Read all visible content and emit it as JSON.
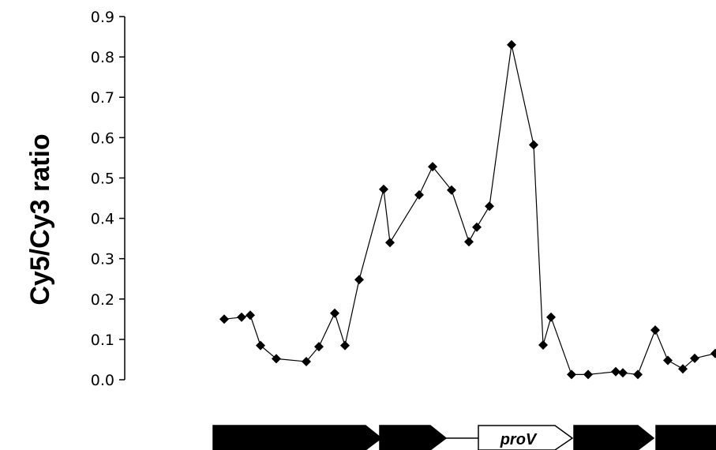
{
  "chart_data": {
    "type": "line",
    "title": "",
    "xlabel": "",
    "ylabel": "Cy5/Cy3 ratio",
    "ylim": [
      0,
      0.9
    ],
    "yticks": [
      "0.0",
      "0.1",
      "0.2",
      "0.3",
      "0.4",
      "0.5",
      "0.6",
      "0.7",
      "0.8",
      "0.9"
    ],
    "grid": false,
    "legend": "none",
    "marker": "diamond",
    "line_color": "#000000",
    "series": [
      {
        "values": [
          0.15,
          0.155,
          0.16,
          0.085,
          0.052,
          0.045,
          0.082,
          0.165,
          0.085,
          0.248,
          0.472,
          0.34,
          0.458,
          0.528,
          0.47,
          0.342,
          0.378,
          0.43,
          0.83,
          0.582,
          0.086,
          0.155,
          0.013,
          0.013,
          0.02,
          0.017,
          0.013,
          0.123,
          0.048,
          0.027,
          0.053,
          0.065
        ]
      }
    ],
    "genes": [
      {
        "label": "",
        "fill": "#000000"
      },
      {
        "label": "",
        "fill": "#000000"
      },
      {
        "label": "proV",
        "fill": "#ffffff"
      },
      {
        "label": "",
        "fill": "#000000"
      },
      {
        "label": "",
        "fill": "#000000"
      }
    ]
  }
}
